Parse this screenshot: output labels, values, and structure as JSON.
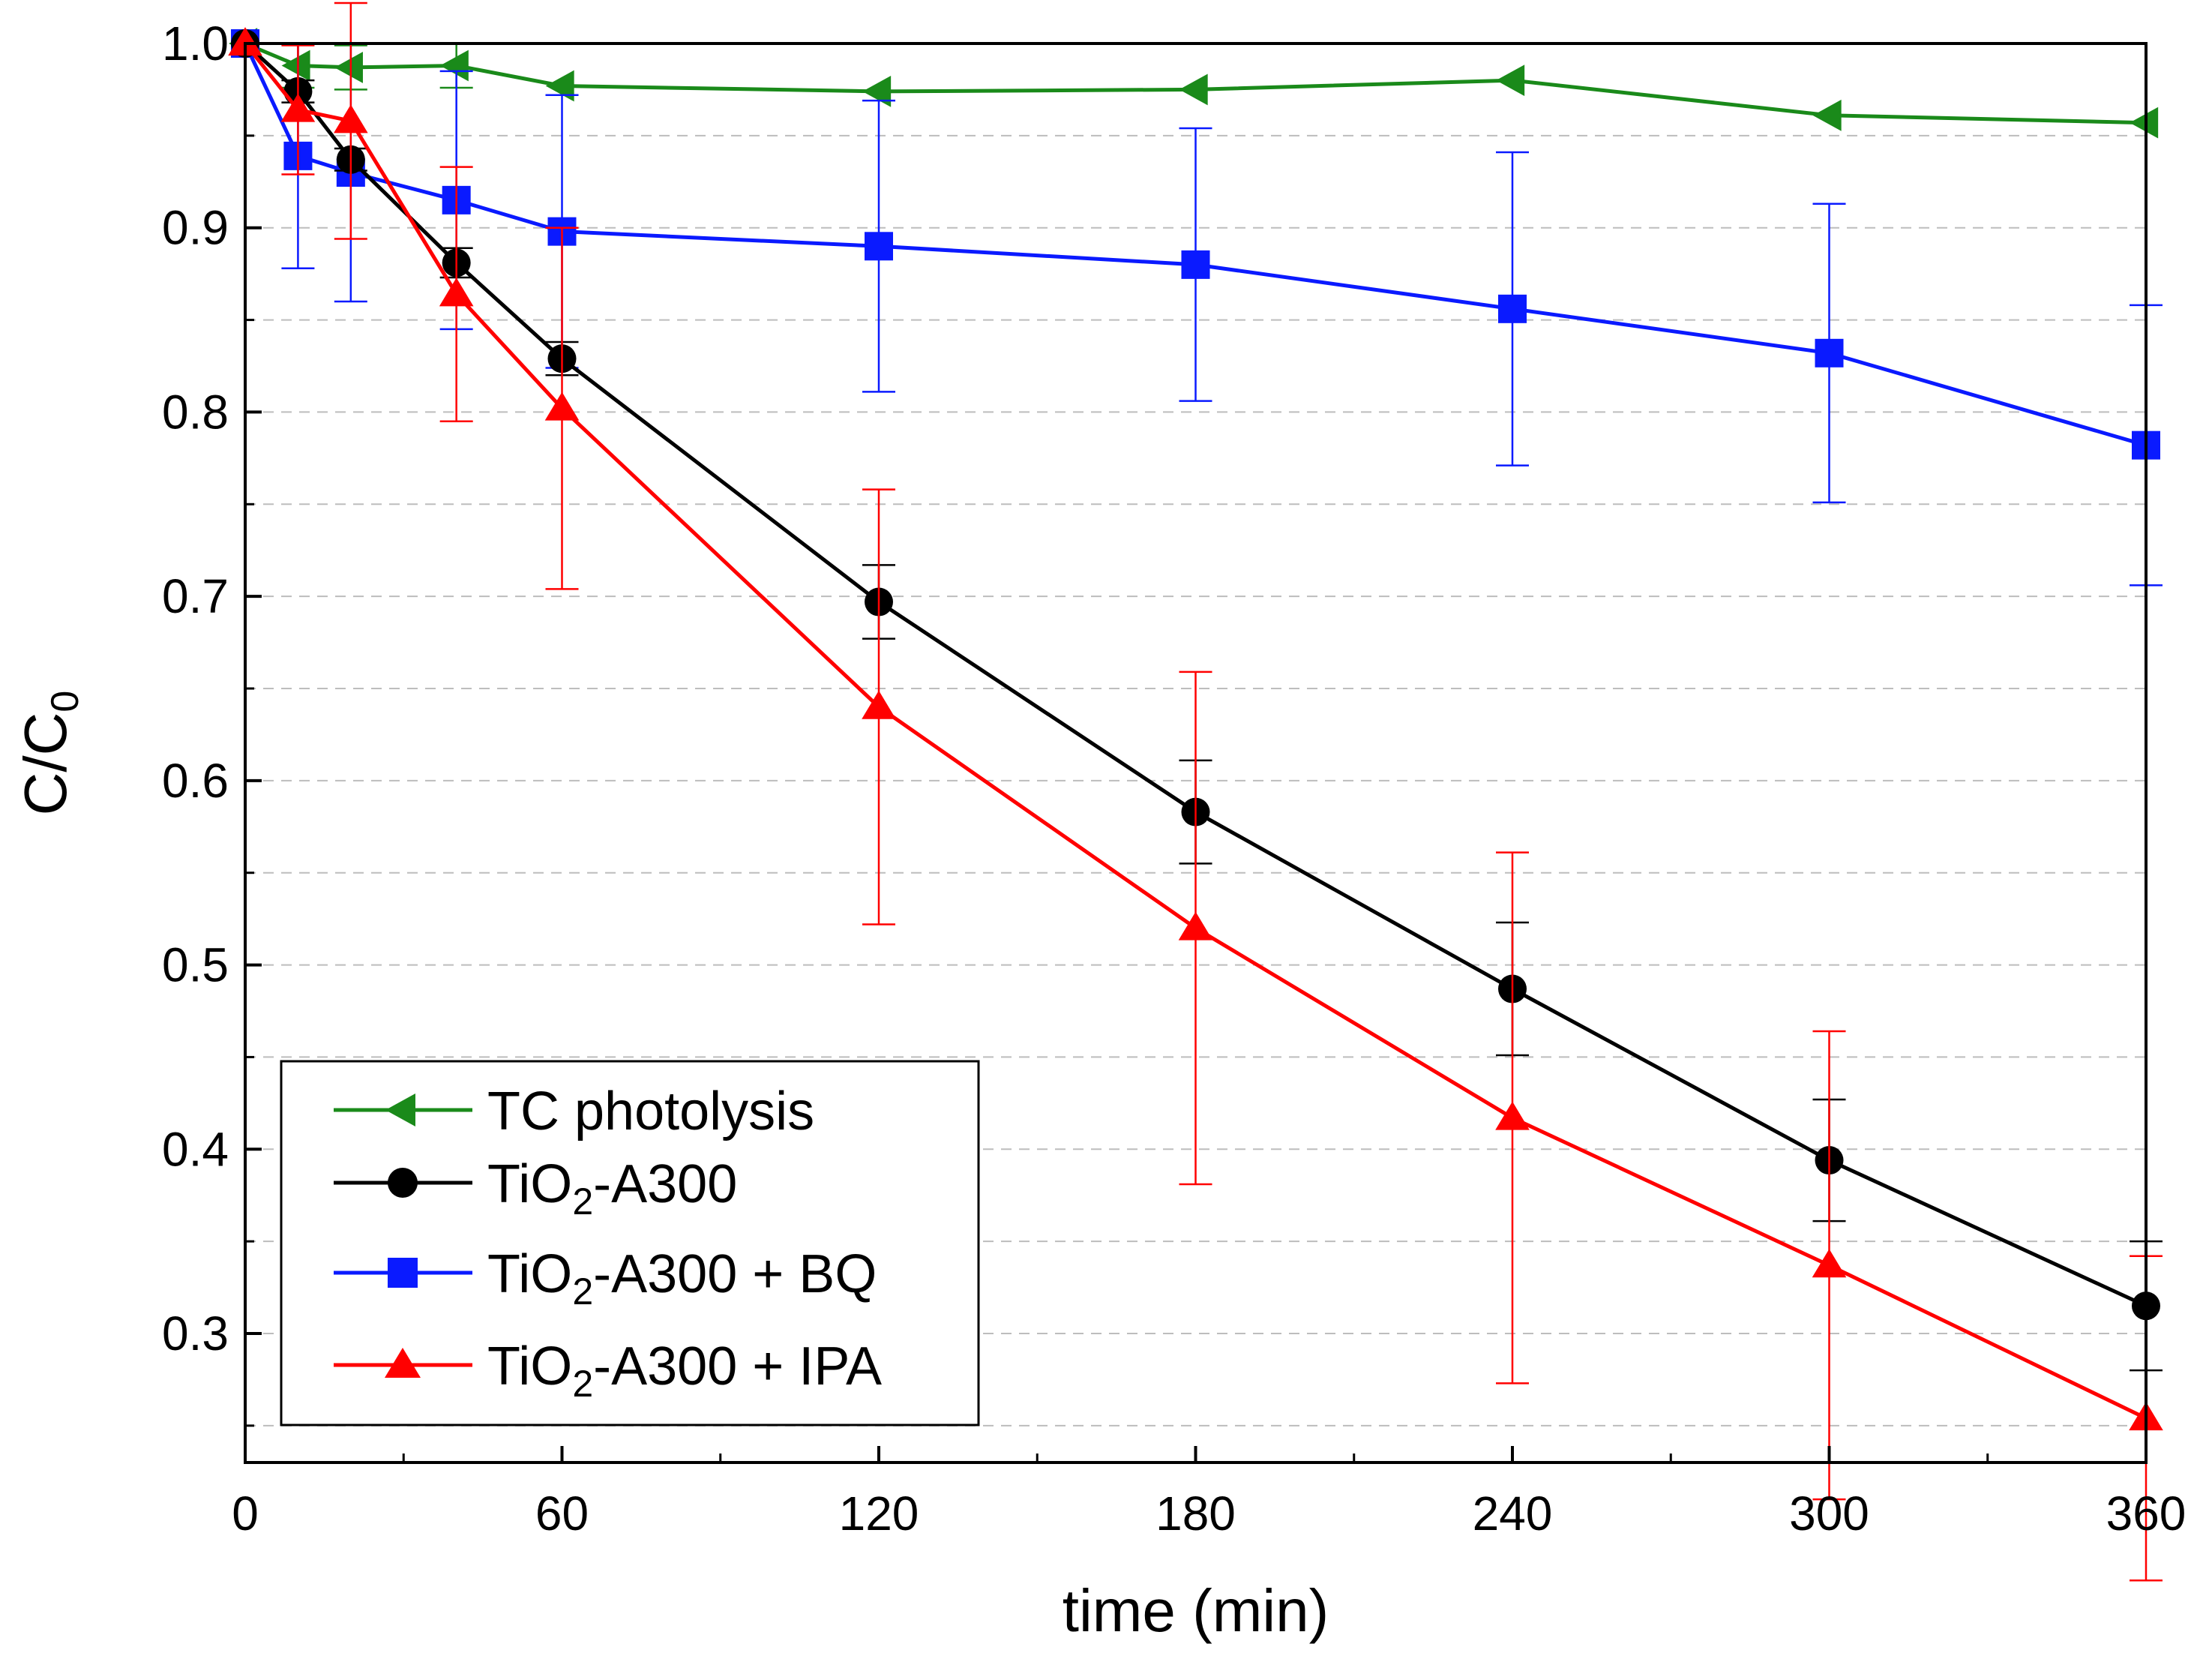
{
  "chart_data": {
    "type": "line",
    "title": "",
    "xlabel": "time (min)",
    "ylabel": "C/C",
    "ylabel_subscript": "0",
    "xlim": [
      0,
      360
    ],
    "ylim": [
      0.23,
      1.0
    ],
    "x_ticks": [
      "0",
      "60",
      "120",
      "180",
      "240",
      "300",
      "360"
    ],
    "y_ticks": [
      "0.3",
      "0.4",
      "0.5",
      "0.6",
      "0.7",
      "0.8",
      "0.9",
      "1.0"
    ],
    "grid": "dashed horizontal",
    "legend_position": "bottom-left",
    "series": [
      {
        "name": "TC photolysis",
        "label_parts": [
          "TC photolysis"
        ],
        "color": "#1a8a1a",
        "marker": "triangle-left",
        "x": [
          0,
          10,
          20,
          40,
          60,
          120,
          180,
          240,
          300,
          360
        ],
        "y": [
          1.0,
          0.988,
          0.987,
          0.988,
          0.977,
          0.974,
          0.975,
          0.98,
          0.961,
          0.957
        ],
        "err": [
          0,
          0.012,
          0.012,
          0.012,
          0,
          0,
          0,
          0,
          0,
          0
        ]
      },
      {
        "name": "TiO2-A300",
        "label_parts": [
          "TiO",
          "2",
          "-A300"
        ],
        "color": "#000000",
        "marker": "circle",
        "x": [
          0,
          10,
          20,
          40,
          60,
          120,
          180,
          240,
          300,
          360
        ],
        "y": [
          1.0,
          0.974,
          0.937,
          0.881,
          0.829,
          0.697,
          0.583,
          0.487,
          0.394,
          0.315
        ],
        "err": [
          0,
          0.006,
          0.006,
          0.008,
          0.009,
          0.02,
          0.028,
          0.036,
          0.033,
          0.035
        ]
      },
      {
        "name": "TiO2-A300 + BQ",
        "label_parts": [
          "TiO",
          "2",
          "-A300 + BQ"
        ],
        "color": "#0a1aff",
        "marker": "square",
        "x": [
          0,
          10,
          20,
          40,
          60,
          120,
          180,
          240,
          300,
          360
        ],
        "y": [
          1.0,
          0.939,
          0.93,
          0.915,
          0.898,
          0.89,
          0.88,
          0.856,
          0.832,
          0.782
        ],
        "err": [
          0,
          0.061,
          0.07,
          0.07,
          0.074,
          0.079,
          0.074,
          0.085,
          0.081,
          0.076
        ]
      },
      {
        "name": "TiO2-A300 + IPA",
        "label_parts": [
          "TiO",
          "2",
          "-A300 + IPA"
        ],
        "color": "#ff0000",
        "marker": "triangle-up",
        "x": [
          0,
          10,
          20,
          40,
          60,
          120,
          180,
          240,
          300,
          360
        ],
        "y": [
          1.0,
          0.964,
          0.958,
          0.864,
          0.802,
          0.64,
          0.52,
          0.417,
          0.337,
          0.254
        ],
        "err": [
          0,
          0.035,
          0.064,
          0.069,
          0.098,
          0.118,
          0.139,
          0.144,
          0.127,
          0.088
        ]
      }
    ]
  }
}
